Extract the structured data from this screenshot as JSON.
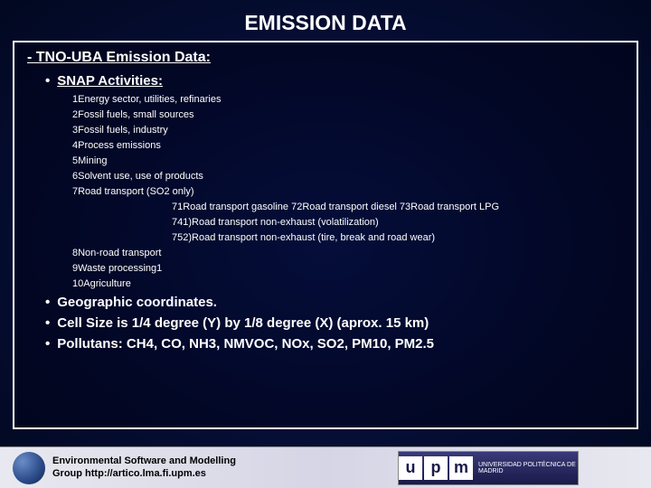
{
  "title": "EMISSION DATA",
  "heading": "- TNO-UBA Emission Data:",
  "snap_label": "SNAP Activities:",
  "snap_items": [
    "1Energy sector, utilities, refinaries",
    "2Fossil fuels, small sources",
    "3Fossil fuels, industry",
    "4Process emissions",
    "5Mining",
    "6Solvent use, use of products",
    "7Road transport (SO2 only)"
  ],
  "snap_sub": [
    "71Road transport gasoline 72Road transport diesel 73Road transport LPG",
    "741)Road transport non-exhaust (volatilization)",
    "752)Road transport non-exhaust (tire, break and road wear)"
  ],
  "snap_tail": [
    "8Non-road transport",
    "9Waste processing1",
    "10Agriculture"
  ],
  "bullets": {
    "geo": "Geographic coordinates.",
    "cell": "Cell Size is 1/4 degree (Y)  by 1/8 degree (X)  (aprox. 15 km)",
    "poll": "Pollutans: CH4, CO, NH3, NMVOC, NOx, SO2, PM10, PM2.5"
  },
  "footer": {
    "line1": "Environmental Software and Modelling",
    "line2": "Group http://artico.lma.fi.upm.es",
    "logo_text": "upm",
    "logo_sub": "UNIVERSIDAD POLITÉCNICA DE MADRID"
  },
  "colors": {
    "bg_center": "#0a1a5a",
    "bg_outer": "#020820",
    "border": "#ffffff",
    "text": "#ffffff",
    "footer_bg": "#e8e8f0",
    "footer_text": "#000000",
    "logo_bg": "#1a1a4a"
  }
}
